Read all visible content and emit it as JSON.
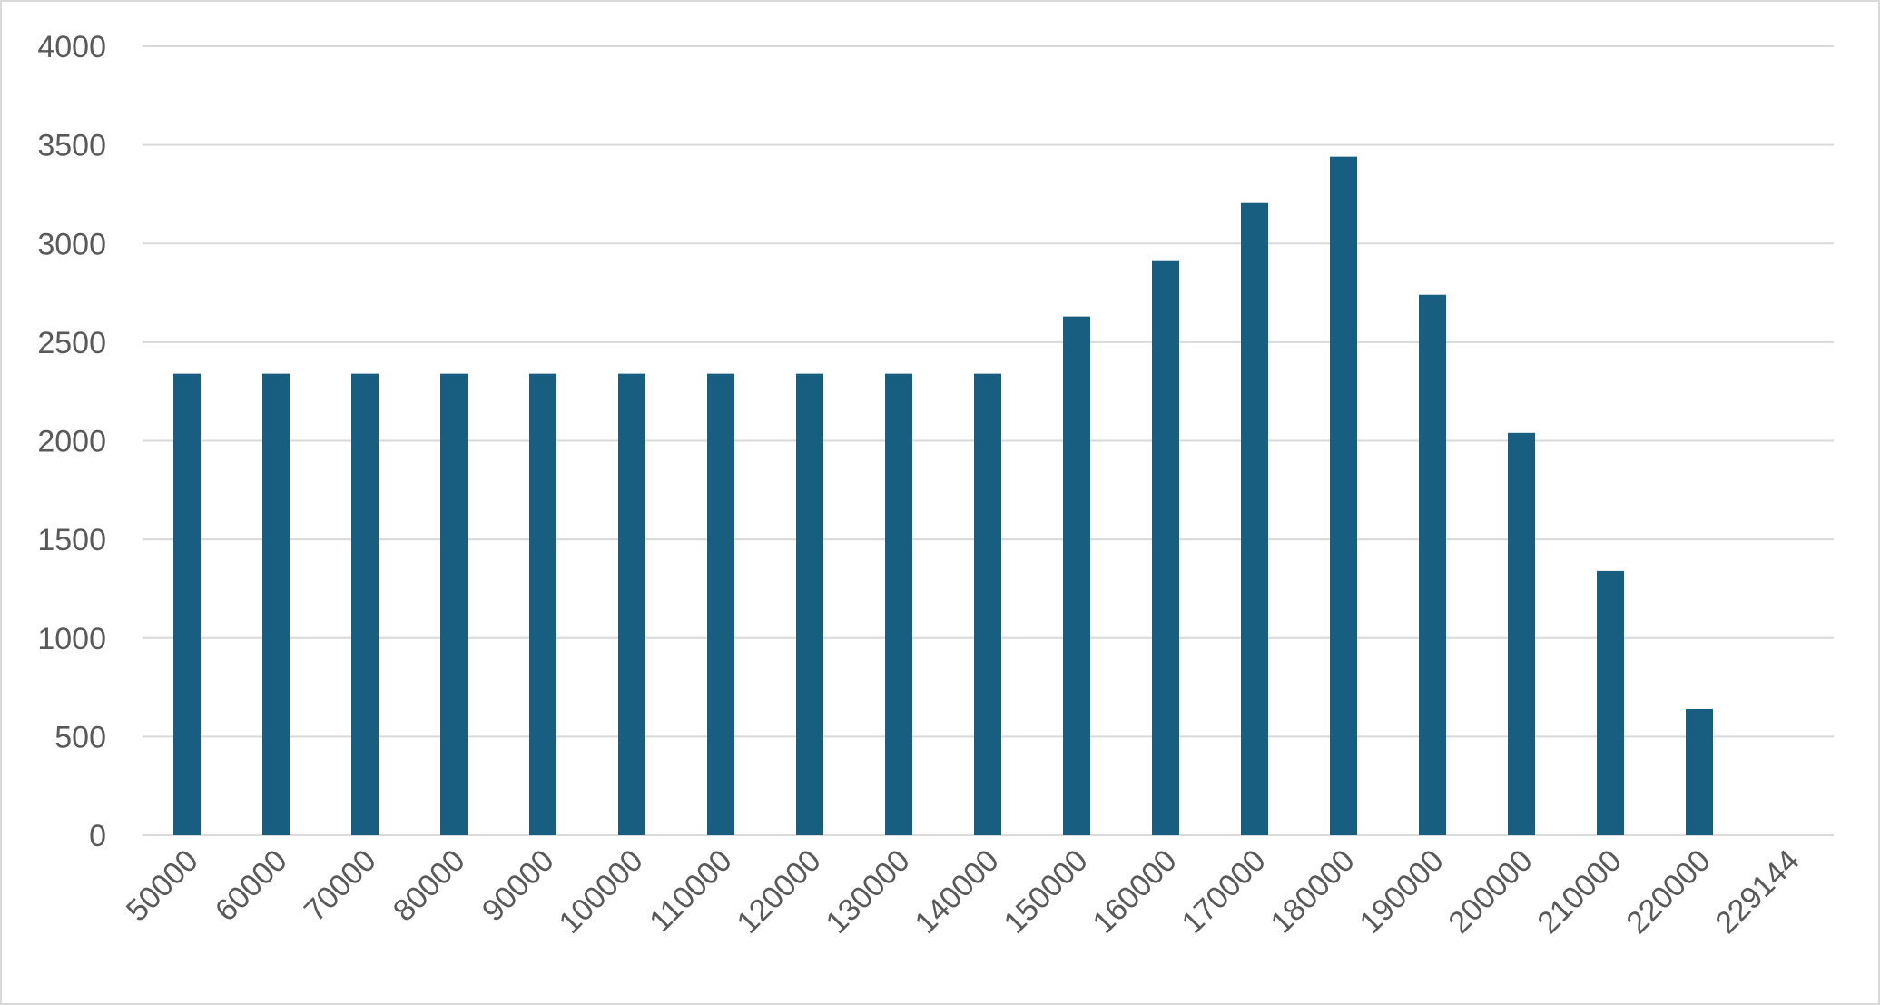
{
  "chart_data": {
    "type": "bar",
    "title": "",
    "xlabel": "",
    "ylabel": "",
    "categories": [
      "50000",
      "60000",
      "70000",
      "80000",
      "90000",
      "100000",
      "110000",
      "120000",
      "130000",
      "140000",
      "150000",
      "160000",
      "170000",
      "180000",
      "190000",
      "200000",
      "210000",
      "220000",
      "229144"
    ],
    "values": [
      2340,
      2340,
      2340,
      2340,
      2340,
      2340,
      2340,
      2340,
      2340,
      2340,
      2630,
      2915,
      3205,
      3440,
      2740,
      2040,
      1340,
      640,
      0
    ],
    "ylim": [
      0,
      4000
    ],
    "yticks": [
      0,
      500,
      1000,
      1500,
      2000,
      2500,
      3000,
      3500,
      4000
    ],
    "grid": true,
    "legend": "none",
    "colors": {
      "bar": "#175e80",
      "grid": "#d9d9d9",
      "text": "#595959"
    }
  }
}
